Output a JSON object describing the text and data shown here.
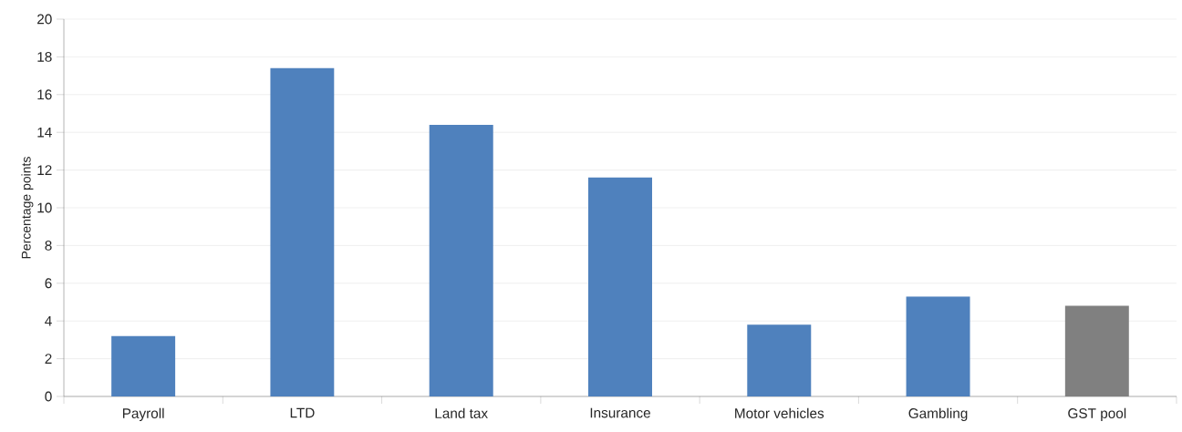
{
  "chart_data": {
    "type": "bar",
    "ylabel": "Percentage points",
    "categories": [
      "Payroll",
      "LTD",
      "Land tax",
      "Insurance",
      "Motor vehicles",
      "Gambling",
      "GST pool"
    ],
    "values": [
      3.2,
      17.4,
      14.4,
      11.6,
      3.8,
      5.3,
      4.8
    ],
    "colors": [
      "#4f81bd",
      "#4f81bd",
      "#4f81bd",
      "#4f81bd",
      "#4f81bd",
      "#4f81bd",
      "#808080"
    ],
    "ylim": [
      0,
      20
    ],
    "yticks": [
      0,
      2,
      4,
      6,
      8,
      10,
      12,
      14,
      16,
      18,
      20
    ],
    "grid": "y"
  }
}
